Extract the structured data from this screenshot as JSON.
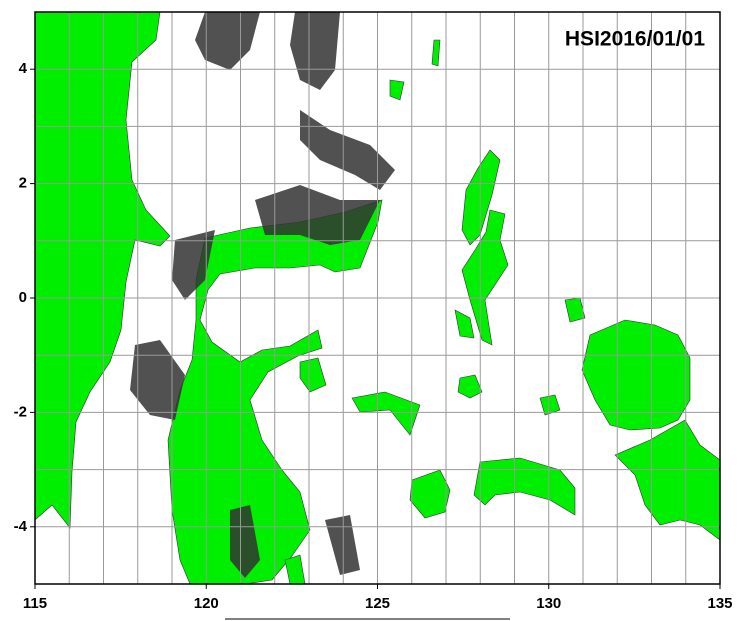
{
  "map": {
    "title": "HSI2016/01/01",
    "xlim": [
      115,
      135
    ],
    "ylim": [
      -5,
      5
    ],
    "xticks": [
      115,
      120,
      125,
      130,
      135
    ],
    "yticks": [
      4,
      2,
      0,
      -2,
      -4
    ],
    "grid": true,
    "land_color": "#00ee00",
    "cloud_color": "#333333"
  }
}
